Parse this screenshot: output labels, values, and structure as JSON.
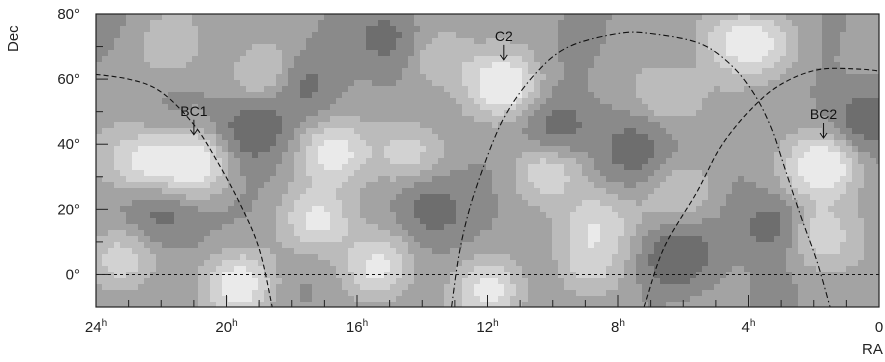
{
  "chart_data": {
    "type": "heatmap",
    "title": "",
    "xlabel": "RA",
    "ylabel": "Dec",
    "x_axis": {
      "range_hours": [
        24,
        0
      ],
      "tick_values": [
        24,
        20,
        16,
        12,
        8,
        4,
        0
      ],
      "tick_labels": [
        "24",
        "20",
        "16",
        "12",
        "8",
        "4",
        "0"
      ],
      "unit_superscript": "h"
    },
    "y_axis": {
      "range_deg": [
        -10,
        80
      ],
      "tick_values": [
        0,
        20,
        40,
        60,
        80
      ],
      "tick_labels": [
        "0°",
        "20°",
        "40°",
        "60°",
        "80°"
      ]
    },
    "grid": false,
    "equator_dec": 0,
    "annotations": [
      {
        "label": "BC1",
        "ra": 21.0,
        "dec": 34
      },
      {
        "label": "C2",
        "ra": 11.5,
        "dec": 57
      },
      {
        "label": "BC2",
        "ra": 1.7,
        "dec": 33
      }
    ],
    "dashed_curves": [
      {
        "name": "",
        "points": [
          [
            24.5,
            62
          ],
          [
            23,
            60
          ],
          [
            22,
            56
          ],
          [
            21,
            46
          ],
          [
            20.3,
            35
          ],
          [
            19.6,
            22
          ],
          [
            19.0,
            8
          ],
          [
            18.6,
            -10
          ]
        ]
      },
      {
        "name": "",
        "points": [
          [
            13.1,
            -10
          ],
          [
            12.8,
            10
          ],
          [
            12.3,
            28
          ],
          [
            11.5,
            48
          ],
          [
            10.5,
            62
          ],
          [
            9.5,
            70
          ],
          [
            8.0,
            74
          ],
          [
            7.0,
            74
          ],
          [
            5.5,
            71
          ],
          [
            4.5,
            64
          ],
          [
            3.8,
            55
          ],
          [
            3.3,
            45
          ],
          [
            2.9,
            33
          ],
          [
            2.4,
            18
          ],
          [
            1.9,
            4
          ],
          [
            1.5,
            -10
          ]
        ]
      },
      {
        "name": "",
        "points": [
          [
            7.2,
            -10
          ],
          [
            6.6,
            8
          ],
          [
            5.6,
            25
          ],
          [
            4.8,
            40
          ],
          [
            3.8,
            52
          ],
          [
            2.9,
            59
          ],
          [
            1.8,
            63
          ],
          [
            0.5,
            63
          ],
          [
            -0.3,
            62
          ]
        ]
      }
    ],
    "contour_map": {
      "levels": 6,
      "level_colors": [
        "#6e6e6e",
        "#8a8a8a",
        "#a3a3a3",
        "#bbbbbb",
        "#d2d2d2",
        "#eaeaea"
      ],
      "features": [
        {
          "ra": 21.0,
          "dec": 34,
          "amp": 1.0
        },
        {
          "ra": 22.6,
          "dec": 35,
          "amp": 0.75
        },
        {
          "ra": 11.5,
          "dec": 58,
          "amp": 0.95
        },
        {
          "ra": 1.7,
          "dec": 33,
          "amp": 1.05
        },
        {
          "ra": 1.9,
          "dec": 12,
          "amp": 0.7
        },
        {
          "ra": 19.6,
          "dec": -3,
          "amp": 0.85
        },
        {
          "ra": 17.2,
          "dec": 16,
          "amp": 0.8
        },
        {
          "ra": 16.7,
          "dec": 37,
          "amp": 0.75
        },
        {
          "ra": 14.5,
          "dec": 38,
          "amp": 0.6
        },
        {
          "ra": 15.4,
          "dec": 2,
          "amp": 0.7
        },
        {
          "ra": 11.9,
          "dec": -5,
          "amp": 0.75
        },
        {
          "ra": 10.2,
          "dec": 32,
          "amp": 0.55
        },
        {
          "ra": 8.7,
          "dec": 16,
          "amp": 0.6
        },
        {
          "ra": 6.6,
          "dec": 55,
          "amp": 0.5
        },
        {
          "ra": 4.5,
          "dec": 72,
          "amp": 0.6
        },
        {
          "ra": 3.4,
          "dec": 70,
          "amp": 0.55
        },
        {
          "ra": 23.3,
          "dec": 5,
          "amp": 0.55
        },
        {
          "ra": 18.6,
          "dec": 60,
          "amp": 0.55
        },
        {
          "ra": 13.5,
          "dec": 66,
          "amp": 0.45
        },
        {
          "ra": 6.0,
          "dec": 25,
          "amp": 0.45
        },
        {
          "ra": 9.0,
          "dec": 3,
          "amp": 0.5
        },
        {
          "ra": 21.7,
          "dec": 70,
          "amp": 0.4
        },
        {
          "ra": 19.2,
          "dec": 45,
          "amp": -0.7
        },
        {
          "ra": 17.8,
          "dec": 58,
          "amp": -0.6
        },
        {
          "ra": 13.8,
          "dec": 20,
          "amp": -0.55
        },
        {
          "ra": 9.8,
          "dec": 45,
          "amp": -0.6
        },
        {
          "ra": 6.2,
          "dec": 5,
          "amp": -0.75
        },
        {
          "ra": 3.2,
          "dec": 15,
          "amp": -0.6
        },
        {
          "ra": 22.0,
          "dec": 18,
          "amp": -0.55
        },
        {
          "ra": 15.0,
          "dec": 72,
          "amp": -0.5
        },
        {
          "ra": 7.5,
          "dec": 38,
          "amp": -0.5
        },
        {
          "ra": 0.5,
          "dec": 48,
          "amp": -0.55
        }
      ]
    }
  }
}
